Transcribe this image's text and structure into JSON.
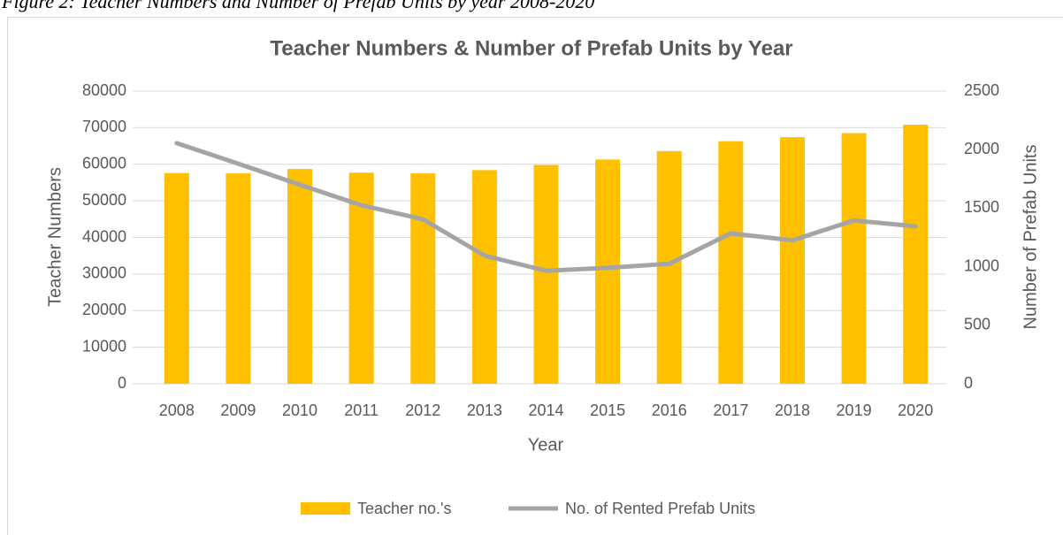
{
  "caption": "Figure 2: Teacher Numbers and Number of Prefab Units by year 2008-2020",
  "chart_data": {
    "type": "bar_line",
    "title": "Teacher Numbers & Number of Prefab Units by Year",
    "x_label": "Year",
    "y_label": "Teacher Numbers",
    "y2_label": "Number of Prefab Units",
    "categories": [
      "2008",
      "2009",
      "2010",
      "2011",
      "2012",
      "2013",
      "2014",
      "2015",
      "2016",
      "2017",
      "2018",
      "2019",
      "2020"
    ],
    "series": [
      {
        "name": "Teacher no.'s",
        "type": "bar",
        "color": "#ffc000",
        "values": [
          57600,
          57500,
          58700,
          57700,
          57500,
          58400,
          59800,
          61300,
          63600,
          66300,
          67400,
          68500,
          70800
        ]
      },
      {
        "name": "No. of Rented Prefab Units",
        "type": "line",
        "axis": "y2",
        "color": "#a5a5a5",
        "values": [
          2055,
          1880,
          1700,
          1525,
          1405,
          1095,
          965,
          990,
          1025,
          1285,
          1225,
          1395,
          1345
        ]
      }
    ],
    "ylim": [
      0,
      80000
    ],
    "yticks": [
      0,
      10000,
      20000,
      30000,
      40000,
      50000,
      60000,
      70000,
      80000
    ],
    "y2lim": [
      0,
      2500
    ],
    "y2ticks": [
      0,
      500,
      1000,
      1500,
      2000,
      2500
    ],
    "grid": true,
    "legend": "bottom"
  }
}
